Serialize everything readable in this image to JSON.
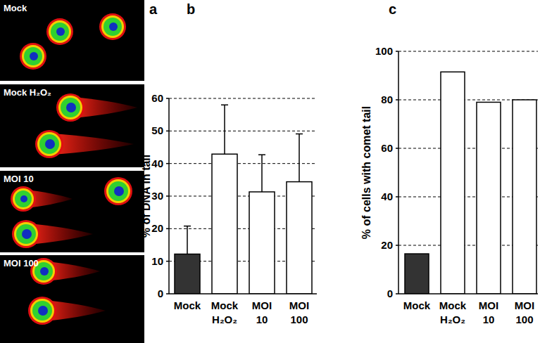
{
  "figure": {
    "image_labels": [
      "Mock",
      "Mock H₂O₂",
      "MOI 10",
      "MOI 100"
    ],
    "panel_labels": [
      "a",
      "b",
      "c"
    ]
  },
  "chart_data": [
    {
      "type": "bar",
      "categories": [
        "Mock",
        "Mock H₂O₂",
        "MOI 10",
        "MOI 100"
      ],
      "values": [
        12.2,
        42.9,
        31.3,
        34.4
      ],
      "errors": [
        8.6,
        15.1,
        11.4,
        14.7
      ],
      "colors": [
        "#333333",
        "#ffffff",
        "#ffffff",
        "#ffffff"
      ],
      "y_label": "% of DNA in tail",
      "ylim": [
        0,
        60
      ],
      "yticks": [
        0,
        10,
        20,
        30,
        40,
        50,
        60
      ],
      "grid": true
    },
    {
      "type": "bar",
      "categories": [
        "Mock",
        "Mock H₂O₂",
        "MOI 10",
        "MOI 100"
      ],
      "values": [
        16.5,
        91.5,
        79,
        80
      ],
      "colors": [
        "#333333",
        "#ffffff",
        "#ffffff",
        "#ffffff"
      ],
      "y_label": "% of cells with comet tail",
      "ylim": [
        0,
        100
      ],
      "yticks": [
        0,
        20,
        40,
        60,
        80,
        100
      ],
      "grid": true
    }
  ]
}
